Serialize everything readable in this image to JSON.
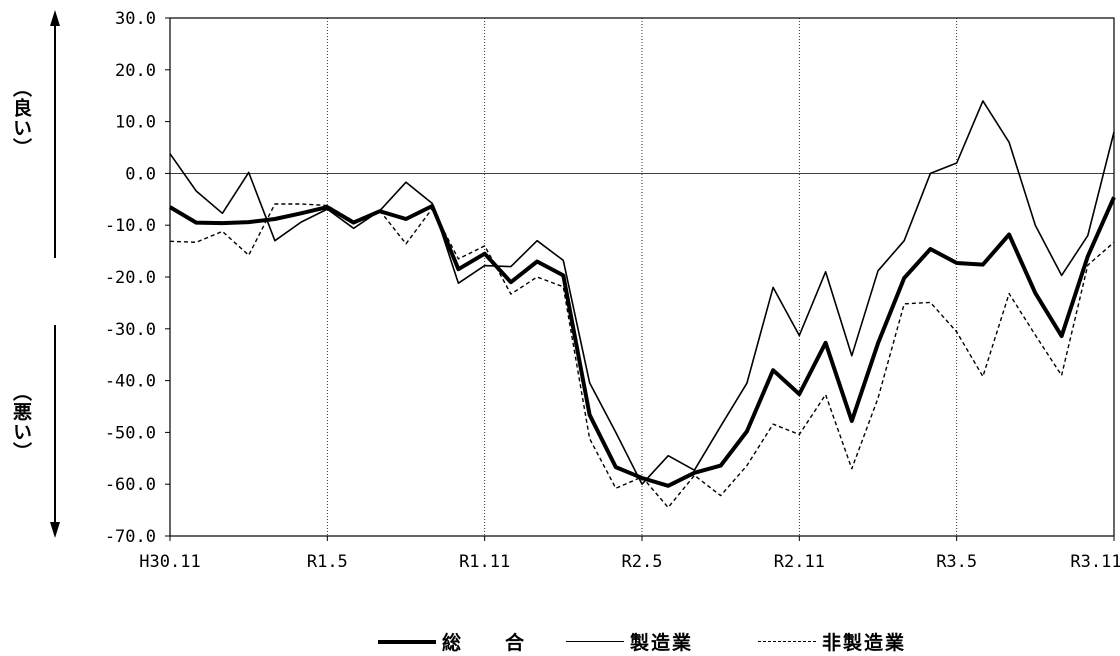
{
  "side_labels": {
    "good": "（良い）",
    "bad": "（悪い）"
  },
  "chart_data": {
    "type": "line",
    "x_tick_labels": [
      "H30.11",
      "R1.5",
      "R1.11",
      "R2.5",
      "R2.11",
      "R3.5",
      "R3.11"
    ],
    "x_tick_index": [
      0,
      6,
      12,
      18,
      24,
      30,
      36
    ],
    "y_tick_labels": [
      "30.0",
      "20.0",
      "10.0",
      "0.0",
      "-10.0",
      "-20.0",
      "-30.0",
      "-40.0",
      "-50.0",
      "-60.0",
      "-70.0"
    ],
    "ylim": [
      -70,
      30
    ],
    "series": [
      {
        "name": "総　　合",
        "style": "thick",
        "values": [
          -6.5,
          -9.5,
          -9.6,
          -9.4,
          -8.8,
          -7.7,
          -6.5,
          -9.5,
          -7.3,
          -8.8,
          -6.3,
          -18.5,
          -15.5,
          -21.0,
          -17.0,
          -19.7,
          -46.6,
          -56.7,
          -58.8,
          -60.3,
          -57.8,
          -56.4,
          -49.8,
          -38.0,
          -42.6,
          -32.7,
          -47.8,
          -32.8,
          -20.2,
          -14.6,
          -17.3,
          -17.6,
          -11.8,
          -23.1,
          -31.4,
          -16.0,
          -4.6
        ]
      },
      {
        "name": "製造業",
        "style": "solid",
        "values": [
          3.8,
          -3.4,
          -7.7,
          0.2,
          -13.0,
          -9.4,
          -6.9,
          -10.6,
          -7.2,
          -1.7,
          -5.8,
          -21.2,
          -17.8,
          -18.0,
          -13.0,
          -16.8,
          -40.4,
          -50.0,
          -60.0,
          -54.5,
          -57.3,
          -48.8,
          -40.5,
          -22.0,
          -31.3,
          -19.0,
          -35.2,
          -18.8,
          -13.0,
          0.0,
          2.0,
          14.0,
          6.0,
          -10.0,
          -19.7,
          -12.0,
          8.0
        ]
      },
      {
        "name": "非製造業",
        "style": "dashed",
        "values": [
          -13.1,
          -13.3,
          -11.2,
          -15.8,
          -5.9,
          -5.9,
          -6.2,
          -9.2,
          -7.2,
          -13.6,
          -6.8,
          -16.5,
          -14.0,
          -23.3,
          -20.0,
          -21.9,
          -51.2,
          -60.8,
          -58.6,
          -64.5,
          -58.3,
          -62.2,
          -56.4,
          -48.4,
          -50.4,
          -42.7,
          -57.0,
          -43.4,
          -25.2,
          -24.9,
          -30.6,
          -39.2,
          -23.2,
          -31.2,
          -39.0,
          -17.7,
          -13.3
        ]
      }
    ],
    "zero_line": true,
    "vertical_gridlines": true,
    "legend_position": "bottom-center"
  },
  "legend": [
    {
      "label": "総　　合",
      "style": "thick"
    },
    {
      "label": "製造業",
      "style": "solid"
    },
    {
      "label": "非製造業",
      "style": "dashed"
    }
  ]
}
